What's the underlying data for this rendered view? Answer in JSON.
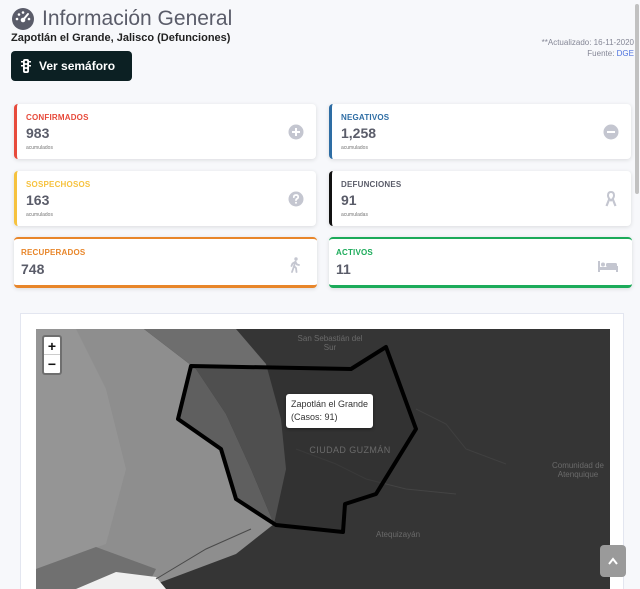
{
  "header": {
    "title": "Información General",
    "title_icon": "tachometer-icon",
    "subtitle": "Zapotlán el Grande, Jalisco (Defunciones)",
    "updated": "**Actualizado: 16-11-2020",
    "source_label": "Fuente:",
    "source_link": "DGE"
  },
  "semaforo_button": {
    "label": "Ver semáforo",
    "icon": "traffic-light-icon"
  },
  "cards": {
    "confirmados": {
      "label": "CONFIRMADOS",
      "value": "983",
      "sub": "acumulados",
      "color": "#e74a3b",
      "icon": "plus-circle-icon"
    },
    "negativos": {
      "label": "NEGATIVOS",
      "value": "1,258",
      "sub": "acumulados",
      "color": "#2e6da4",
      "icon": "minus-circle-icon"
    },
    "sospechosos": {
      "label": "SOSPECHOSOS",
      "value": "163",
      "sub": "acumulados",
      "color": "#f6c23e",
      "icon": "question-circle-icon"
    },
    "defunciones": {
      "label": "DEFUNCIONES",
      "value": "91",
      "sub": "acumuladas",
      "color": "#111111",
      "icon": "ribbon-icon"
    },
    "recuperados": {
      "label": "RECUPERADOS",
      "value": "748",
      "color": "#e8862a",
      "icon": "walking-icon"
    },
    "activos": {
      "label": "ACTIVOS",
      "value": "11",
      "color": "#1cab5a",
      "icon": "bed-icon"
    }
  },
  "map": {
    "zoom_in": "+",
    "zoom_out": "−",
    "tooltip_name": "Zapotlán el Grande",
    "tooltip_cases": "(Casos: 91)",
    "labels": {
      "north": "San Sebastián del Sur",
      "center": "CIUDAD GUZMÁN",
      "east": "Comunidad de Atenquique",
      "south": "Atequizayán"
    }
  },
  "scroll_top_icon": "chevron-up-icon"
}
